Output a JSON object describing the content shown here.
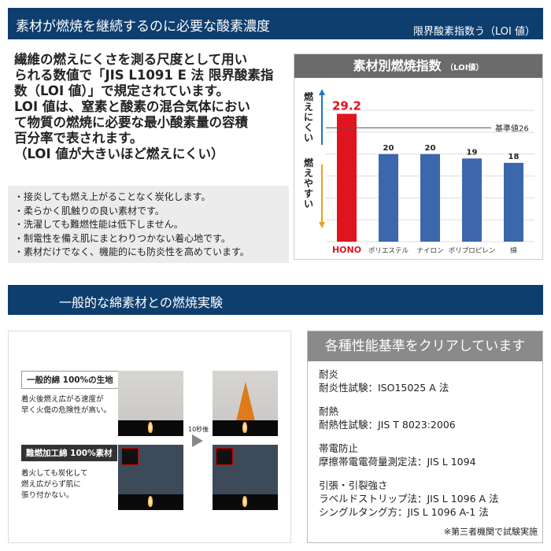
{
  "header": {
    "title": "素材が燃焼を継続するのに必要な酸素濃度",
    "subtitle": "限界酸素指数う（LOI 値）"
  },
  "intro": {
    "lines": [
      "繊維の燃えにくさを測る尺度として用い",
      "られる数値で「JIS L1091 E 法 限界酸素指",
      "数（LOI 値）」で規定されています。",
      "LOI 値は、窒素と酸素の混合気体におい",
      "て物質の燃焼に必要な最小酸素量の容積",
      "百分率で表されます。",
      "（LOI 値が大きいほど燃えにくい）"
    ]
  },
  "bullets": [
    "・接炎しても燃え上がることなく炭化します。",
    "・柔らかく肌触りの良い素材です。",
    "・洗濯しても難燃性能は低下しません。",
    "・制電性を備え肌にまとわりつかない着心地です。",
    "・素材だけでなく、機能的にも防炎性を高めています。"
  ],
  "chart_data": {
    "type": "bar",
    "title": "素材別燃焼指数",
    "title_suffix": "（LOI値）",
    "categories": [
      "HONO",
      "ポリエステル",
      "ナイロン",
      "ポリプロピレン",
      "綿"
    ],
    "values": [
      29.2,
      20,
      20,
      19,
      18
    ],
    "value_labels": [
      "29.2",
      "20",
      "20",
      "19",
      "18"
    ],
    "ylim": [
      0,
      32
    ],
    "grid": true,
    "reference_line": {
      "value": 26,
      "label": "基準値26"
    },
    "up_label": "燃えにくい",
    "down_label": "燃えやすい",
    "colors": {
      "highlight": "#e0141e",
      "bar": "#3d67ad",
      "up_arrow": "#1f77c0",
      "down_arrow": "#e8a020"
    }
  },
  "section2": {
    "title": "一般的な綿素材との燃焼実験"
  },
  "experiment": {
    "normal_label": "一般的綿 100%の生地",
    "normal_desc": [
      "着火後燃え広がる速度が",
      "早く火傷の危険性が高い。"
    ],
    "fr_label": "難燃加工綿 100%素材",
    "fr_desc": [
      "着火しても炭化して",
      "燃え広がらず肌に",
      "張り付かない。"
    ],
    "time_label": "10秒後"
  },
  "performance": {
    "title": "各種性能基準をクリアしています",
    "items": [
      {
        "h": "耐炎",
        "lines": [
          "耐炎性試験：ISO15025 A 法"
        ]
      },
      {
        "h": "耐熱",
        "lines": [
          "耐熱性試験：JIS T 8023:2006"
        ]
      },
      {
        "h": "帯電防止",
        "lines": [
          "摩擦帯電電荷量測定法：JIS L 1094"
        ]
      },
      {
        "h": "引張・引裂強さ",
        "lines": [
          "ラベルドストリップ法：JIS L 1096 A 法",
          "シングルタング方：JIS L 1096 A-1 法"
        ]
      }
    ],
    "note": "※第三者機関で試験実施"
  }
}
